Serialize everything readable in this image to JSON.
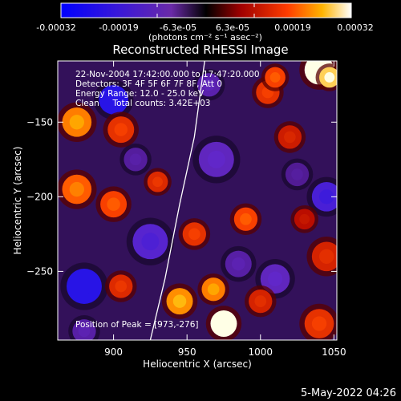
{
  "chart_data": {
    "type": "heatmap",
    "title": "Reconstructed RHESSI Image",
    "xlabel": "Heliocentric X (arcsec)",
    "ylabel": "Heliocentric Y (arcsec)",
    "xlim": [
      862,
      1052
    ],
    "ylim": [
      -296,
      -109
    ],
    "x_ticks": [
      900,
      950,
      1000,
      1050
    ],
    "y_ticks": [
      -150,
      -200,
      -250
    ],
    "colorbar": {
      "range": [
        -0.00032,
        0.00032
      ],
      "tick_labels": [
        "-0.00032",
        "-0.00019",
        "-6.3e-05",
        "6.3e-05",
        "0.00019",
        "0.00032"
      ],
      "unit_label": "(photons cm⁻² s⁻¹ asec⁻²)"
    },
    "annotations": {
      "time_range": "22-Nov-2004 17:42:00.000 to 17:47:20.000",
      "detectors": "Detectors: 3F 4F 5F 6F 7F 8F, Att 0",
      "energy_range": "Energy Range: 12.0 - 25.0 keV",
      "clean_counts": "Clean     Total counts: 3.42E+03",
      "peak_position": "Position of Peak = [973,-276]"
    },
    "limb": [
      [
        925,
        -296
      ],
      [
        935,
        -255
      ],
      [
        945,
        -205
      ],
      [
        955,
        -160
      ],
      [
        962,
        -109
      ]
    ],
    "bright_regions": [
      {
        "x": 1040,
        "y": -115,
        "v": 0.00032,
        "r": 10
      },
      {
        "x": 1047,
        "y": -120,
        "v": 0.00029,
        "r": 7
      },
      {
        "x": 945,
        "y": -270,
        "v": 0.00025,
        "r": 9
      },
      {
        "x": 975,
        "y": -285,
        "v": 0.00032,
        "r": 9
      },
      {
        "x": 968,
        "y": -262,
        "v": 0.00024,
        "r": 8
      },
      {
        "x": 875,
        "y": -150,
        "v": 0.00024,
        "r": 10
      },
      {
        "x": 875,
        "y": -195,
        "v": 0.00022,
        "r": 10
      },
      {
        "x": 900,
        "y": -205,
        "v": 0.0002,
        "r": 9
      },
      {
        "x": 905,
        "y": -155,
        "v": 0.00018,
        "r": 9
      },
      {
        "x": 930,
        "y": -190,
        "v": 0.00017,
        "r": 7
      },
      {
        "x": 1005,
        "y": -130,
        "v": 0.00018,
        "r": 8
      },
      {
        "x": 1010,
        "y": -120,
        "v": 0.0002,
        "r": 7
      },
      {
        "x": 1045,
        "y": -240,
        "v": 0.00016,
        "r": 10
      },
      {
        "x": 1040,
        "y": -285,
        "v": 0.00018,
        "r": 10
      },
      {
        "x": 990,
        "y": -215,
        "v": 0.0002,
        "r": 8
      },
      {
        "x": 1000,
        "y": -270,
        "v": 0.00016,
        "r": 8
      },
      {
        "x": 955,
        "y": -225,
        "v": 0.00018,
        "r": 8
      },
      {
        "x": 905,
        "y": -260,
        "v": 0.00017,
        "r": 8
      },
      {
        "x": 1020,
        "y": -160,
        "v": 0.00015,
        "r": 8
      },
      {
        "x": 1030,
        "y": -215,
        "v": 0.00013,
        "r": 7
      }
    ],
    "dark_regions": [
      {
        "x": 900,
        "y": -135,
        "v": -0.00032,
        "r": 10
      },
      {
        "x": 880,
        "y": -260,
        "v": -0.00032,
        "r": 12
      },
      {
        "x": 925,
        "y": -230,
        "v": -0.00022,
        "r": 12
      },
      {
        "x": 1045,
        "y": -200,
        "v": -0.00025,
        "r": 10
      },
      {
        "x": 970,
        "y": -175,
        "v": -0.00018,
        "r": 12
      },
      {
        "x": 1010,
        "y": -255,
        "v": -0.00018,
        "r": 10
      },
      {
        "x": 965,
        "y": -125,
        "v": -0.00016,
        "r": 8
      },
      {
        "x": 985,
        "y": -245,
        "v": -0.00015,
        "r": 9
      },
      {
        "x": 915,
        "y": -175,
        "v": -0.00014,
        "r": 8
      },
      {
        "x": 1025,
        "y": -185,
        "v": -0.00013,
        "r": 8
      },
      {
        "x": 880,
        "y": -290,
        "v": -0.00015,
        "r": 8
      }
    ]
  },
  "footer": {
    "date": "5-May-2022 04:26"
  }
}
